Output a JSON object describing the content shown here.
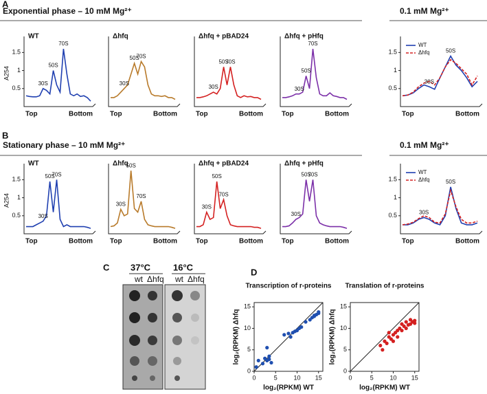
{
  "figure": {
    "panel_labels": [
      "A",
      "B",
      "C",
      "D"
    ],
    "headings": [
      "Exponential phase – 10 mM Mg²⁺",
      "0.1 mM Mg²⁺",
      "Stationary phase – 10 mM Mg²⁺",
      "0.1 mM Mg²⁺"
    ],
    "plate": {
      "temps": [
        "37°C",
        "16°C"
      ],
      "strains": [
        "wt",
        "Δhfq",
        "wt",
        "Δhfq"
      ]
    }
  },
  "chart_data": [
    {
      "type": "line",
      "title": "WT",
      "ylabel": "A254",
      "x_end_labels": [
        "Top",
        "Bottom"
      ],
      "ylim": [
        0,
        1.85
      ],
      "yticks": [
        0.5,
        1,
        1.5
      ],
      "series": [
        {
          "color": "#1f3fb0",
          "values": [
            0.3,
            0.28,
            0.27,
            0.27,
            0.3,
            0.5,
            0.45,
            0.35,
            1.0,
            0.6,
            0.4,
            1.6,
            0.9,
            0.35,
            0.3,
            0.35,
            0.28,
            0.3,
            0.25,
            0.15
          ]
        }
      ],
      "annotations": [
        {
          "text": "30S",
          "index": 5
        },
        {
          "text": "50S",
          "index": 8
        },
        {
          "text": "70S",
          "index": 11
        }
      ]
    },
    {
      "type": "line",
      "title": "Δhfq",
      "x_end_labels": [
        "Top",
        "Bottom"
      ],
      "ylim": [
        0,
        1.85
      ],
      "series": [
        {
          "color": "#b87a2a",
          "values": [
            0.25,
            0.25,
            0.3,
            0.4,
            0.5,
            0.6,
            0.9,
            1.2,
            0.9,
            1.25,
            1.1,
            0.6,
            0.35,
            0.3,
            0.3,
            0.28,
            0.3,
            0.25,
            0.25,
            0.2
          ]
        }
      ],
      "annotations": [
        {
          "text": "30S",
          "index": 4
        },
        {
          "text": "50S",
          "index": 7
        },
        {
          "text": "70S",
          "index": 9
        }
      ]
    },
    {
      "type": "line",
      "title": "Δhfq + pBAD24",
      "x_end_labels": [
        "Top",
        "Bottom"
      ],
      "ylim": [
        0,
        1.85
      ],
      "series": [
        {
          "color": "#d42020",
          "values": [
            0.25,
            0.25,
            0.27,
            0.3,
            0.35,
            0.4,
            0.35,
            0.5,
            1.1,
            0.6,
            1.1,
            0.6,
            0.3,
            0.25,
            0.3,
            0.27,
            0.28,
            0.25,
            0.25,
            0.2
          ]
        }
      ],
      "annotations": [
        {
          "text": "30S",
          "index": 5
        },
        {
          "text": "50S",
          "index": 8
        },
        {
          "text": "70S",
          "index": 10
        }
      ]
    },
    {
      "type": "line",
      "title": "Δhfq + pHfq",
      "x_end_labels": [
        "Top",
        "Bottom"
      ],
      "ylim": [
        0,
        1.85
      ],
      "series": [
        {
          "color": "#7b2fa8",
          "values": [
            0.25,
            0.25,
            0.27,
            0.3,
            0.35,
            0.35,
            0.4,
            0.85,
            0.5,
            1.6,
            0.8,
            0.35,
            0.3,
            0.3,
            0.38,
            0.3,
            0.28,
            0.25,
            0.25,
            0.2
          ]
        }
      ],
      "annotations": [
        {
          "text": "30S",
          "index": 5
        },
        {
          "text": "50S",
          "index": 7
        },
        {
          "text": "70S",
          "index": 9
        }
      ]
    },
    {
      "type": "line",
      "x_end_labels": [
        "Top",
        "Bottom"
      ],
      "ylim": [
        0,
        1.85
      ],
      "yticks": [
        0.5,
        1,
        1.5
      ],
      "legend": "upper left",
      "series": [
        {
          "name": "WT",
          "color": "#1f3fb0",
          "values": [
            0.3,
            0.32,
            0.38,
            0.5,
            0.6,
            0.55,
            0.48,
            0.8,
            1.1,
            1.4,
            1.15,
            1.0,
            0.8,
            0.55,
            0.7
          ]
        },
        {
          "name": "Δhfq",
          "color": "#d42020",
          "dashed": true,
          "values": [
            0.3,
            0.32,
            0.4,
            0.55,
            0.65,
            0.7,
            0.6,
            0.8,
            1.1,
            1.3,
            1.2,
            1.05,
            0.9,
            0.6,
            0.85
          ]
        }
      ],
      "annotations": [
        {
          "text": "30S",
          "index": 5
        },
        {
          "text": "50S",
          "index": 9
        }
      ]
    },
    {
      "type": "line",
      "title": "WT",
      "ylabel": "A254",
      "x_end_labels": [
        "Top",
        "Bottom"
      ],
      "ylim": [
        0,
        1.85
      ],
      "yticks": [
        0.5,
        1,
        1.5
      ],
      "series": [
        {
          "color": "#1f3fb0",
          "values": [
            0.2,
            0.2,
            0.2,
            0.25,
            0.3,
            0.35,
            0.5,
            1.45,
            0.6,
            1.5,
            0.4,
            0.2,
            0.25,
            0.2,
            0.2,
            0.2,
            0.2,
            0.2,
            0.18,
            0.15
          ]
        }
      ],
      "annotations": [
        {
          "text": "30S",
          "index": 5
        },
        {
          "text": "50S",
          "index": 7
        },
        {
          "text": "70S",
          "index": 9
        }
      ]
    },
    {
      "type": "line",
      "title": "Δhfq",
      "x_end_labels": [
        "Top",
        "Bottom"
      ],
      "ylim": [
        0,
        1.85
      ],
      "series": [
        {
          "color": "#b87a2a",
          "values": [
            0.2,
            0.22,
            0.3,
            0.68,
            0.5,
            0.55,
            1.75,
            0.7,
            0.6,
            0.9,
            0.4,
            0.25,
            0.22,
            0.2,
            0.2,
            0.2,
            0.2,
            0.2,
            0.18,
            0.15
          ]
        }
      ],
      "annotations": [
        {
          "text": "30S",
          "index": 3
        },
        {
          "text": "50S",
          "index": 6
        },
        {
          "text": "70S",
          "index": 9
        }
      ]
    },
    {
      "type": "line",
      "title": "Δhfq + pBAD24",
      "x_end_labels": [
        "Top",
        "Bottom"
      ],
      "ylim": [
        0,
        1.85
      ],
      "series": [
        {
          "color": "#d42020",
          "values": [
            0.2,
            0.2,
            0.25,
            0.6,
            0.4,
            0.45,
            1.45,
            0.7,
            0.95,
            0.5,
            0.25,
            0.22,
            0.2,
            0.2,
            0.2,
            0.2,
            0.2,
            0.18,
            0.18,
            0.15
          ]
        }
      ],
      "annotations": [
        {
          "text": "30S",
          "index": 3
        },
        {
          "text": "50S",
          "index": 6
        },
        {
          "text": "70S",
          "index": 8
        }
      ]
    },
    {
      "type": "line",
      "title": "Δhfq + pHfq",
      "x_end_labels": [
        "Top",
        "Bottom"
      ],
      "ylim": [
        0,
        1.85
      ],
      "series": [
        {
          "color": "#7b2fa8",
          "values": [
            0.2,
            0.2,
            0.22,
            0.3,
            0.4,
            0.45,
            0.55,
            1.5,
            0.9,
            1.5,
            0.5,
            0.3,
            0.25,
            0.22,
            0.2,
            0.2,
            0.2,
            0.2,
            0.18,
            0.15
          ]
        }
      ],
      "annotations": [
        {
          "text": "30S",
          "index": 4
        },
        {
          "text": "50S",
          "index": 7
        },
        {
          "text": "70S",
          "index": 9
        }
      ]
    },
    {
      "type": "line",
      "x_end_labels": [
        "Top",
        "Bottom"
      ],
      "ylim": [
        0,
        1.85
      ],
      "yticks": [
        0.5,
        1,
        1.5
      ],
      "legend": "upper left",
      "series": [
        {
          "name": "WT",
          "color": "#1f3fb0",
          "values": [
            0.25,
            0.25,
            0.3,
            0.4,
            0.45,
            0.4,
            0.3,
            0.25,
            0.5,
            1.3,
            0.7,
            0.3,
            0.25,
            0.25,
            0.3
          ]
        },
        {
          "name": "Δhfq",
          "color": "#d42020",
          "dashed": true,
          "values": [
            0.25,
            0.27,
            0.32,
            0.42,
            0.5,
            0.45,
            0.32,
            0.3,
            0.55,
            1.2,
            0.75,
            0.4,
            0.3,
            0.3,
            0.35
          ]
        }
      ],
      "annotations": [
        {
          "text": "30S",
          "index": 4
        },
        {
          "text": "50S",
          "index": 9
        }
      ]
    },
    {
      "type": "scatter",
      "title": "Transcription of r-proteins",
      "xlabel": "log₂(RPKM) WT",
      "ylabel": "log₂(RPKM) Δhfq",
      "xlim": [
        0,
        16
      ],
      "ylim": [
        0,
        16
      ],
      "xticks": [
        0,
        5,
        10,
        15
      ],
      "yticks": [
        0,
        5,
        10,
        15
      ],
      "x": [
        0.5,
        1,
        2,
        2.5,
        3,
        3,
        3.5,
        3.5,
        4,
        7,
        8,
        8.5,
        9,
        9.5,
        10,
        10.5,
        11,
        12,
        13,
        13.5,
        14,
        14,
        14.5,
        15,
        15
      ],
      "series": [
        {
          "color": "#1f4fb0",
          "values": [
            1,
            2.5,
            1.8,
            3,
            2.5,
            5.5,
            2.8,
            3.5,
            2,
            8.5,
            8.8,
            8,
            9,
            9.3,
            9.5,
            10,
            10.3,
            11.5,
            12,
            12.5,
            12.8,
            13,
            13.2,
            13.5,
            13.8
          ]
        }
      ]
    },
    {
      "type": "scatter",
      "title": "Translation of r-proteins",
      "xlabel": "log₂(RPKM) WT",
      "ylabel": "log₂(RPKM) Δhfq",
      "xlim": [
        0,
        16
      ],
      "ylim": [
        0,
        16
      ],
      "xticks": [
        0,
        5,
        10,
        15
      ],
      "yticks": [
        0,
        5,
        10,
        15
      ],
      "x": [
        7,
        7.5,
        8,
        8.5,
        9,
        9,
        9.5,
        10,
        10,
        10.5,
        11,
        11,
        11.5,
        12,
        12,
        12.5,
        13,
        13,
        13.5,
        14,
        14,
        14.5,
        15,
        15
      ],
      "series": [
        {
          "color": "#d42020",
          "values": [
            6,
            5,
            7,
            6.5,
            8,
            9,
            7.5,
            8.5,
            7,
            9,
            9.5,
            8,
            10,
            9.5,
            11,
            10.5,
            10,
            11.5,
            10.8,
            11,
            12,
            11.5,
            11.8,
            11.2
          ]
        }
      ]
    }
  ]
}
